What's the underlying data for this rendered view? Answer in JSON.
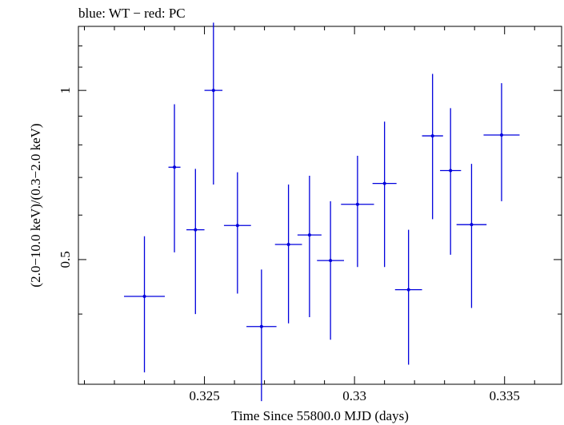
{
  "chart_data": {
    "type": "scatter",
    "title": "blue: WT − red: PC",
    "xlabel": "Time Since 55800.0 MJD (days)",
    "ylabel": "(2.0−10.0 keV)/(0.3−2.0 keV)",
    "xlim": [
      0.3208,
      0.3369
    ],
    "ylim": [
      0.3,
      1.3
    ],
    "y_scale": "log",
    "x_ticks": [
      0.325,
      0.33,
      0.335
    ],
    "x_tick_labels": [
      "0.325",
      "0.33",
      "0.335"
    ],
    "y_ticks": [
      0.5,
      1
    ],
    "y_tick_labels": [
      "0.5",
      "1"
    ],
    "grid": false,
    "series": [
      {
        "color": "#0000dd",
        "points": [
          {
            "x": 0.323,
            "xerr": 0.00068,
            "y": 0.43,
            "ylo": 0.315,
            "yhi": 0.55
          },
          {
            "x": 0.324,
            "xerr": 0.0002,
            "y": 0.73,
            "ylo": 0.515,
            "yhi": 0.945
          },
          {
            "x": 0.3247,
            "xerr": 0.0003,
            "y": 0.565,
            "ylo": 0.4,
            "yhi": 0.725
          },
          {
            "x": 0.3253,
            "xerr": 0.0003,
            "y": 1.0,
            "ylo": 0.68,
            "yhi": 1.32
          },
          {
            "x": 0.3261,
            "xerr": 0.00045,
            "y": 0.575,
            "ylo": 0.435,
            "yhi": 0.715
          },
          {
            "x": 0.3269,
            "xerr": 0.0005,
            "y": 0.38,
            "ylo": 0.28,
            "yhi": 0.48
          },
          {
            "x": 0.3278,
            "xerr": 0.00045,
            "y": 0.532,
            "ylo": 0.385,
            "yhi": 0.68
          },
          {
            "x": 0.3285,
            "xerr": 0.0004,
            "y": 0.553,
            "ylo": 0.395,
            "yhi": 0.705
          },
          {
            "x": 0.3292,
            "xerr": 0.00045,
            "y": 0.498,
            "ylo": 0.36,
            "yhi": 0.635
          },
          {
            "x": 0.3301,
            "xerr": 0.00055,
            "y": 0.627,
            "ylo": 0.485,
            "yhi": 0.765
          },
          {
            "x": 0.331,
            "xerr": 0.0004,
            "y": 0.683,
            "ylo": 0.485,
            "yhi": 0.88
          },
          {
            "x": 0.3318,
            "xerr": 0.00045,
            "y": 0.442,
            "ylo": 0.325,
            "yhi": 0.565
          },
          {
            "x": 0.3326,
            "xerr": 0.00035,
            "y": 0.83,
            "ylo": 0.59,
            "yhi": 1.07
          },
          {
            "x": 0.3332,
            "xerr": 0.00035,
            "y": 0.72,
            "ylo": 0.51,
            "yhi": 0.93
          },
          {
            "x": 0.3339,
            "xerr": 0.0005,
            "y": 0.577,
            "ylo": 0.41,
            "yhi": 0.74
          },
          {
            "x": 0.3349,
            "xerr": 0.0006,
            "y": 0.833,
            "ylo": 0.635,
            "yhi": 1.03
          }
        ]
      }
    ]
  }
}
